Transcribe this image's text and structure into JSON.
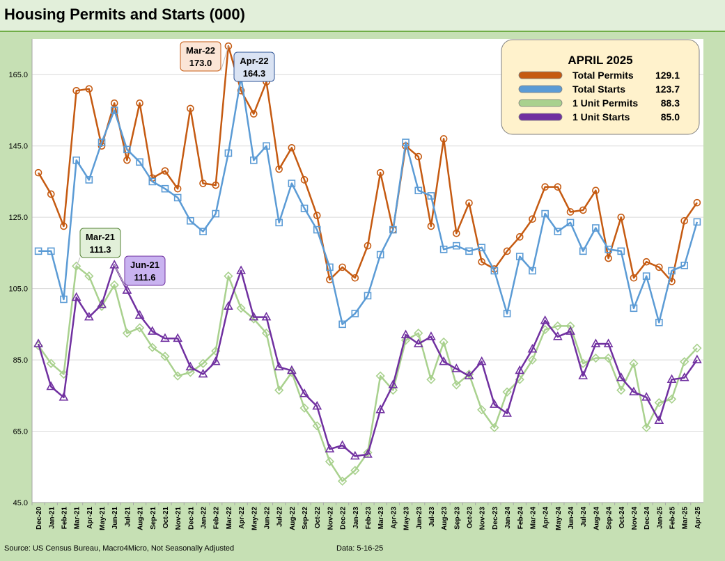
{
  "title": "Housing Permits and Starts (000)",
  "source": "Source: US Census Bureau, Macro4Micro, Not Seasonally Adjusted",
  "data_date": "Data: 5-16-25",
  "chart_data": {
    "type": "line",
    "ylim": [
      45,
      175
    ],
    "yticks": [
      45,
      65,
      85,
      105,
      125,
      145,
      165
    ],
    "ytick_labels": [
      "45.0",
      "65.0",
      "85.0",
      "105.0",
      "125.0",
      "145.0",
      "165.0"
    ],
    "grid": "horizontal",
    "x": [
      "Dec-20",
      "Jan-21",
      "Feb-21",
      "Mar-21",
      "Apr-21",
      "May-21",
      "Jun-21",
      "Jul-21",
      "Aug-21",
      "Sep-21",
      "Oct-21",
      "Nov-21",
      "Dec-21",
      "Jan-22",
      "Feb-22",
      "Mar-22",
      "Apr-22",
      "May-22",
      "Jun-22",
      "Jul-22",
      "Aug-22",
      "Sep-22",
      "Oct-22",
      "Nov-22",
      "Dec-22",
      "Jan-23",
      "Feb-23",
      "Mar-23",
      "Apr-23",
      "May-23",
      "Jun-23",
      "Jul-23",
      "Aug-23",
      "Sep-23",
      "Oct-23",
      "Nov-23",
      "Dec-23",
      "Jan-24",
      "Feb-24",
      "Mar-24",
      "Apr-24",
      "May-24",
      "Jun-24",
      "Jul-24",
      "Aug-24",
      "Sep-24",
      "Oct-24",
      "Nov-24",
      "Dec-24",
      "Jan-25",
      "Feb-25",
      "Mar-25",
      "Apr-25"
    ],
    "series": [
      {
        "name": "Total Permits",
        "color": "#c55a11",
        "marker": "circle",
        "values": [
          137.5,
          131.5,
          122.5,
          160.5,
          161,
          145,
          157,
          141,
          157,
          136,
          138,
          133,
          155.5,
          134.5,
          134,
          173,
          160.5,
          154,
          163,
          138.5,
          144.5,
          135.5,
          125.5,
          107.5,
          111,
          108,
          117,
          137.5,
          121.5,
          145,
          142,
          122.5,
          147,
          120.5,
          129,
          112.5,
          110.5,
          115.5,
          119.5,
          124.5,
          133.5,
          133.5,
          126.5,
          127,
          132.5,
          113.5,
          125,
          108,
          112.5,
          111,
          107,
          124,
          129.1
        ]
      },
      {
        "name": "Total Starts",
        "color": "#5b9bd5",
        "marker": "square",
        "values": [
          115.5,
          115.5,
          102,
          141,
          135.5,
          146,
          155,
          144,
          140.5,
          135,
          133,
          130.5,
          124,
          121,
          126,
          143,
          164.3,
          141,
          145,
          123.5,
          134.5,
          127.5,
          121.5,
          111,
          95,
          98,
          103,
          114.5,
          121.5,
          146,
          132.5,
          131,
          116,
          117,
          115.5,
          116.5,
          110,
          98,
          114,
          110,
          126,
          121,
          123.5,
          115.5,
          122,
          116,
          115.5,
          99.5,
          108.5,
          95.5,
          110,
          111.5,
          123.7
        ]
      },
      {
        "name": "1 Unit Permits",
        "color": "#a9d18e",
        "marker": "diamond",
        "values": [
          89,
          84,
          81,
          111.3,
          108.5,
          100,
          106,
          92.5,
          94,
          88.5,
          86,
          80.5,
          81.5,
          84,
          87.5,
          108.5,
          99.5,
          96.5,
          92.5,
          76.5,
          81.5,
          71.5,
          66.5,
          56.5,
          51,
          54,
          59,
          80.5,
          76.5,
          90.5,
          92.5,
          79.5,
          90,
          78,
          81,
          71,
          66,
          76,
          79.5,
          85,
          93.5,
          94.5,
          94.5,
          84,
          85.5,
          85.5,
          76.5,
          84,
          66,
          73,
          74,
          84.5,
          88.3
        ]
      },
      {
        "name": "1 Unit Starts",
        "color": "#7030a0",
        "marker": "triangle",
        "values": [
          89.5,
          77.5,
          74.5,
          102.5,
          97,
          100.5,
          111.6,
          104.5,
          97.5,
          93,
          91,
          91,
          83,
          81,
          84.5,
          100,
          110,
          97,
          97,
          83,
          82,
          75.5,
          72,
          60,
          61,
          58,
          58.5,
          71,
          78,
          92,
          89.5,
          91.5,
          84.5,
          82.5,
          80.5,
          84.5,
          72.5,
          70,
          82,
          88,
          96,
          91.5,
          93,
          80.5,
          89.5,
          89.5,
          80,
          76,
          74.5,
          68,
          79.5,
          80,
          85
        ]
      }
    ],
    "legend": {
      "title": "APRIL 2025",
      "placement": "top-right",
      "items": [
        {
          "name": "Total Permits",
          "value": "129.1"
        },
        {
          "name": "Total Starts",
          "value": "123.7"
        },
        {
          "name": "1 Unit Permits",
          "value": "88.3"
        },
        {
          "name": "1 Unit Starts",
          "value": "85.0"
        }
      ]
    },
    "annotations": [
      {
        "date": "Mar-22",
        "value": "173.0",
        "series": "Total Permits",
        "fill": "#fbe5d6",
        "border": "#c55a11"
      },
      {
        "date": "Apr-22",
        "value": "164.3",
        "series": "Total Starts",
        "fill": "#dae3f3",
        "border": "#2f5597"
      },
      {
        "date": "Mar-21",
        "value": "111.3",
        "series": "1 Unit Permits",
        "fill": "#e2f0d9",
        "border": "#548235"
      },
      {
        "date": "Jun-21",
        "value": "111.6",
        "series": "1 Unit Starts",
        "fill": "#c9b3f0",
        "border": "#7030a0"
      }
    ]
  }
}
